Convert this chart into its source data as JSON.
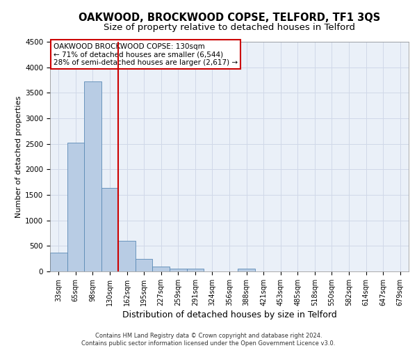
{
  "title": "OAKWOOD, BROCKWOOD COPSE, TELFORD, TF1 3QS",
  "subtitle": "Size of property relative to detached houses in Telford",
  "xlabel": "Distribution of detached houses by size in Telford",
  "ylabel": "Number of detached properties",
  "footer_line1": "Contains HM Land Registry data © Crown copyright and database right 2024.",
  "footer_line2": "Contains public sector information licensed under the Open Government Licence v3.0.",
  "categories": [
    "33sqm",
    "65sqm",
    "98sqm",
    "130sqm",
    "162sqm",
    "195sqm",
    "227sqm",
    "259sqm",
    "291sqm",
    "324sqm",
    "356sqm",
    "388sqm",
    "421sqm",
    "453sqm",
    "485sqm",
    "518sqm",
    "550sqm",
    "582sqm",
    "614sqm",
    "647sqm",
    "679sqm"
  ],
  "values": [
    375,
    2520,
    3720,
    1630,
    600,
    245,
    100,
    60,
    50,
    0,
    0,
    60,
    0,
    0,
    0,
    0,
    0,
    0,
    0,
    0,
    0
  ],
  "bar_color": "#b8cce4",
  "bar_edge_color": "#5a8ab5",
  "vline_index": 3,
  "vline_color": "#cc0000",
  "annotation_text": "OAKWOOD BROCKWOOD COPSE: 130sqm\n← 71% of detached houses are smaller (6,544)\n28% of semi-detached houses are larger (2,617) →",
  "annotation_box_color": "#ffffff",
  "annotation_box_edge": "#cc0000",
  "ylim": [
    0,
    4500
  ],
  "yticks": [
    0,
    500,
    1000,
    1500,
    2000,
    2500,
    3000,
    3500,
    4000,
    4500
  ],
  "background_color": "#ffffff",
  "grid_color": "#d0d8e8",
  "title_fontsize": 10.5,
  "subtitle_fontsize": 9.5,
  "xlabel_fontsize": 9,
  "ylabel_fontsize": 8,
  "tick_fontsize": 7,
  "annotation_fontsize": 7.5,
  "footer_fontsize": 6
}
